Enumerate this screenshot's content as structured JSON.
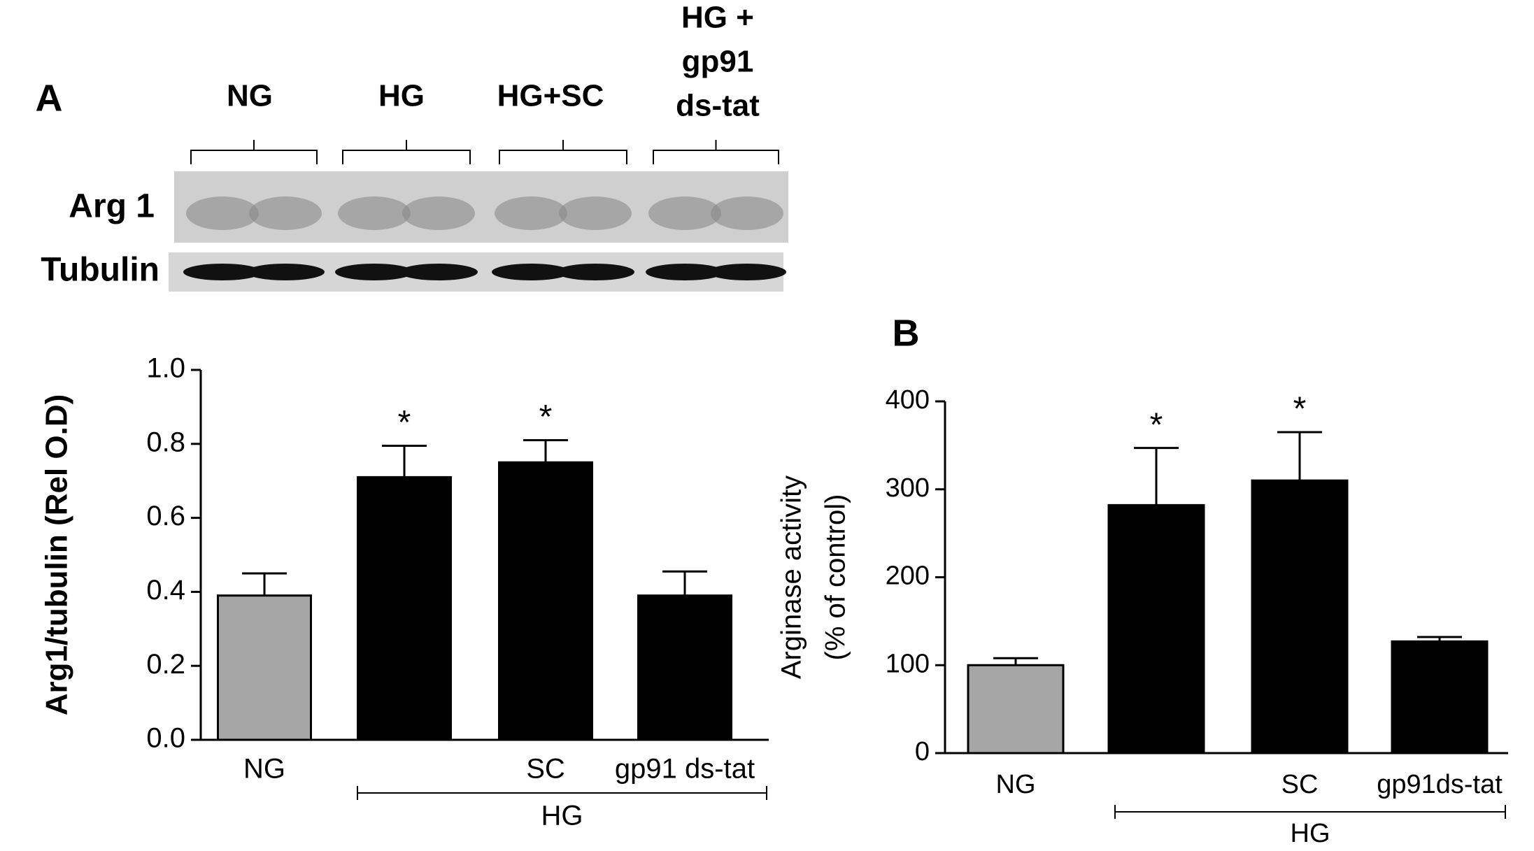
{
  "panel_a": {
    "label": "A",
    "lanes": [
      [
        "NG"
      ],
      [
        "HG"
      ],
      [
        "HG+SC"
      ],
      [
        "HG +",
        "gp91",
        "ds-tat"
      ]
    ],
    "rows": [
      "Arg 1",
      "Tubulin"
    ]
  },
  "panel_b": {
    "label": "B"
  },
  "chart_data": [
    {
      "type": "bar",
      "ylabel": [
        "Arg1/tubulin (Rel O.D)"
      ],
      "categories": [
        "NG",
        null,
        "SC",
        "gp91 ds-tat"
      ],
      "groups": [
        null,
        "HG",
        "HG",
        "HG"
      ],
      "values": [
        0.39,
        0.71,
        0.75,
        0.39
      ],
      "errors": [
        0.06,
        0.085,
        0.06,
        0.065
      ],
      "markers": [
        null,
        "*",
        "*",
        null
      ],
      "colors": [
        "#a6a6a6",
        "#000000",
        "#000000",
        "#000000"
      ],
      "ylim": [
        0,
        1
      ],
      "yticks": [
        {
          "value": 0,
          "label": "0.0"
        },
        0.2,
        0.4,
        0.6,
        0.8,
        {
          "value": 1,
          "label": "1.0"
        }
      ]
    },
    {
      "type": "bar",
      "ylabel": [
        "Arginase activity",
        "(% of control)"
      ],
      "categories": [
        "NG",
        null,
        "SC",
        "gp91ds-tat"
      ],
      "groups": [
        null,
        "HG",
        "HG",
        "HG"
      ],
      "values": [
        100,
        282,
        310,
        127
      ],
      "errors": [
        8,
        65,
        55,
        5
      ],
      "markers": [
        null,
        "*",
        "*",
        null
      ],
      "colors": [
        "#a6a6a6",
        "#000000",
        "#000000",
        "#000000"
      ],
      "ylim": [
        0,
        400
      ],
      "yticks": [
        0,
        100,
        200,
        300,
        400
      ]
    }
  ]
}
